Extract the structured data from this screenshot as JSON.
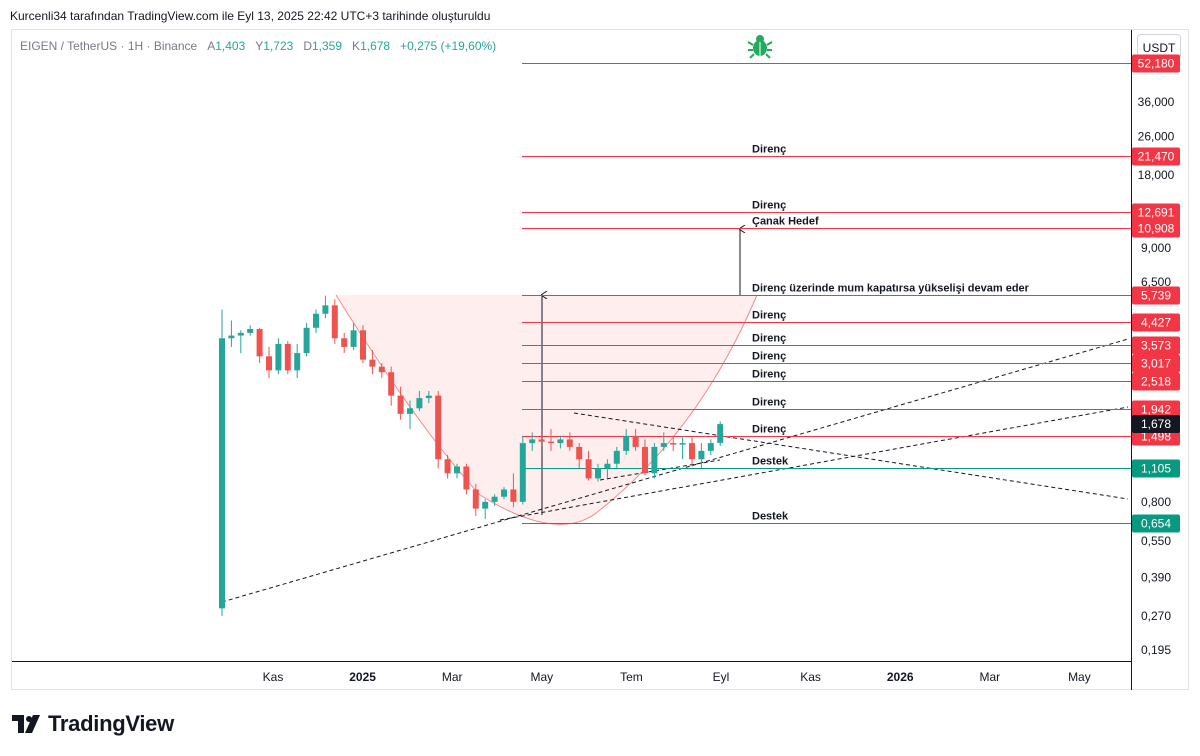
{
  "caption": "Kurcenli34 tarafından TradingView.com ile Eyl 13, 2025 22:42 UTC+3 tarihinde oluşturuldu",
  "symbol": {
    "title": "EIGEN / TetherUS · 1H · Binance",
    "open_label": "A",
    "open": "1,403",
    "high_label": "Y",
    "high": "1,723",
    "low_label": "D",
    "low": "1,359",
    "close_label": "K",
    "close": "1,678",
    "change": "+0,275 (+19,60%)"
  },
  "currency": "USDT",
  "brand": "TradingView",
  "colors": {
    "up": "#26a69a",
    "down": "#ef5350",
    "resistance": "#f23645",
    "support": "#089981",
    "last": "#131722"
  },
  "chart_data": {
    "type": "candlestick",
    "symbol": "EIGEN / TetherUS",
    "interval": "1H",
    "exchange": "Binance",
    "scale": "log",
    "x_ticks": [
      "Kas",
      "2025",
      "Mar",
      "May",
      "Tem",
      "Eyl",
      "Kas",
      "2026",
      "Mar",
      "May"
    ],
    "y_ticks": [
      "36,000",
      "26,000",
      "18,000",
      "9,000",
      "6,500",
      "0,800",
      "0,550",
      "0,390",
      "0,270",
      "0,195"
    ],
    "levels": [
      {
        "label": "",
        "value": "52,180",
        "kind": "resistance"
      },
      {
        "label": "Direnç",
        "value": "21,470",
        "kind": "resistance"
      },
      {
        "label": "Direnç",
        "value": "12,691",
        "kind": "resistance"
      },
      {
        "label": "Çanak Hedef",
        "value": "10,908",
        "kind": "resistance"
      },
      {
        "label": "Direnç üzerinde mum kapatırsa yükselişi devam eder",
        "value": "5,739",
        "kind": "resistance"
      },
      {
        "label": "Direnç",
        "value": "4,427",
        "kind": "resistance"
      },
      {
        "label": "Direnç",
        "value": "3,573",
        "kind": "resistance"
      },
      {
        "label": "Direnç",
        "value": "3,017",
        "kind": "resistance"
      },
      {
        "label": "Direnç",
        "value": "2,518",
        "kind": "resistance"
      },
      {
        "label": "Direnç",
        "value": "1,942",
        "kind": "resistance"
      },
      {
        "label": "Direnç",
        "value": "1,498",
        "kind": "resistance"
      },
      {
        "label": "Destek",
        "value": "1,105",
        "kind": "support"
      },
      {
        "label": "Destek",
        "value": "0,654",
        "kind": "support"
      }
    ],
    "last_price": "1,678",
    "candles": [
      {
        "o": 0.29,
        "h": 5.0,
        "l": 0.27,
        "c": 3.8
      },
      {
        "o": 3.8,
        "h": 4.5,
        "l": 3.5,
        "c": 3.9
      },
      {
        "o": 3.9,
        "h": 4.1,
        "l": 3.3,
        "c": 4.0
      },
      {
        "o": 4.0,
        "h": 4.3,
        "l": 3.9,
        "c": 4.15
      },
      {
        "o": 4.15,
        "h": 4.2,
        "l": 3.0,
        "c": 3.2
      },
      {
        "o": 3.2,
        "h": 3.5,
        "l": 2.6,
        "c": 2.8
      },
      {
        "o": 2.8,
        "h": 3.8,
        "l": 2.7,
        "c": 3.6
      },
      {
        "o": 3.6,
        "h": 3.7,
        "l": 2.7,
        "c": 2.8
      },
      {
        "o": 2.8,
        "h": 3.6,
        "l": 2.6,
        "c": 3.3
      },
      {
        "o": 3.3,
        "h": 4.4,
        "l": 3.2,
        "c": 4.2
      },
      {
        "o": 4.2,
        "h": 5.0,
        "l": 4.0,
        "c": 4.8
      },
      {
        "o": 4.8,
        "h": 5.7,
        "l": 4.6,
        "c": 5.2
      },
      {
        "o": 5.2,
        "h": 5.5,
        "l": 3.6,
        "c": 3.8
      },
      {
        "o": 3.8,
        "h": 4.0,
        "l": 3.3,
        "c": 3.5
      },
      {
        "o": 3.5,
        "h": 4.4,
        "l": 3.4,
        "c": 4.1
      },
      {
        "o": 4.1,
        "h": 4.3,
        "l": 3.0,
        "c": 3.1
      },
      {
        "o": 3.1,
        "h": 3.4,
        "l": 2.7,
        "c": 2.9
      },
      {
        "o": 2.9,
        "h": 3.0,
        "l": 2.6,
        "c": 2.75
      },
      {
        "o": 2.75,
        "h": 2.9,
        "l": 2.0,
        "c": 2.2
      },
      {
        "o": 2.2,
        "h": 2.4,
        "l": 1.75,
        "c": 1.85
      },
      {
        "o": 1.85,
        "h": 2.1,
        "l": 1.6,
        "c": 1.95
      },
      {
        "o": 1.95,
        "h": 2.3,
        "l": 1.9,
        "c": 2.15
      },
      {
        "o": 2.15,
        "h": 2.3,
        "l": 2.05,
        "c": 2.2
      },
      {
        "o": 2.2,
        "h": 2.3,
        "l": 1.1,
        "c": 1.2
      },
      {
        "o": 1.2,
        "h": 1.25,
        "l": 1.0,
        "c": 1.05
      },
      {
        "o": 1.05,
        "h": 1.15,
        "l": 1.0,
        "c": 1.12
      },
      {
        "o": 1.12,
        "h": 1.15,
        "l": 0.86,
        "c": 0.9
      },
      {
        "o": 0.9,
        "h": 0.95,
        "l": 0.7,
        "c": 0.75
      },
      {
        "o": 0.75,
        "h": 0.82,
        "l": 0.68,
        "c": 0.8
      },
      {
        "o": 0.8,
        "h": 0.86,
        "l": 0.77,
        "c": 0.84
      },
      {
        "o": 0.84,
        "h": 0.92,
        "l": 0.82,
        "c": 0.9
      },
      {
        "o": 0.9,
        "h": 1.05,
        "l": 0.76,
        "c": 0.8
      },
      {
        "o": 0.8,
        "h": 1.5,
        "l": 0.78,
        "c": 1.4
      },
      {
        "o": 1.4,
        "h": 1.55,
        "l": 1.3,
        "c": 1.45
      },
      {
        "o": 1.45,
        "h": 1.6,
        "l": 1.35,
        "c": 1.42
      },
      {
        "o": 1.42,
        "h": 1.6,
        "l": 1.3,
        "c": 1.4
      },
      {
        "o": 1.4,
        "h": 1.5,
        "l": 1.33,
        "c": 1.45
      },
      {
        "o": 1.45,
        "h": 1.55,
        "l": 1.3,
        "c": 1.35
      },
      {
        "o": 1.35,
        "h": 1.4,
        "l": 1.1,
        "c": 1.2
      },
      {
        "o": 1.2,
        "h": 1.3,
        "l": 0.98,
        "c": 1.0
      },
      {
        "o": 1.0,
        "h": 1.15,
        "l": 0.97,
        "c": 1.1
      },
      {
        "o": 1.1,
        "h": 1.2,
        "l": 1.0,
        "c": 1.15
      },
      {
        "o": 1.15,
        "h": 1.35,
        "l": 1.1,
        "c": 1.3
      },
      {
        "o": 1.3,
        "h": 1.6,
        "l": 1.25,
        "c": 1.5
      },
      {
        "o": 1.5,
        "h": 1.6,
        "l": 1.3,
        "c": 1.35
      },
      {
        "o": 1.35,
        "h": 1.45,
        "l": 1.03,
        "c": 1.05
      },
      {
        "o": 1.05,
        "h": 1.4,
        "l": 1.0,
        "c": 1.35
      },
      {
        "o": 1.35,
        "h": 1.55,
        "l": 1.3,
        "c": 1.4
      },
      {
        "o": 1.4,
        "h": 1.5,
        "l": 1.3,
        "c": 1.38
      },
      {
        "o": 1.38,
        "h": 1.5,
        "l": 1.2,
        "c": 1.4
      },
      {
        "o": 1.4,
        "h": 1.48,
        "l": 1.12,
        "c": 1.2
      },
      {
        "o": 1.2,
        "h": 1.4,
        "l": 1.1,
        "c": 1.3
      },
      {
        "o": 1.3,
        "h": 1.45,
        "l": 1.25,
        "c": 1.4
      },
      {
        "o": 1.403,
        "h": 1.723,
        "l": 1.359,
        "c": 1.678
      }
    ]
  }
}
